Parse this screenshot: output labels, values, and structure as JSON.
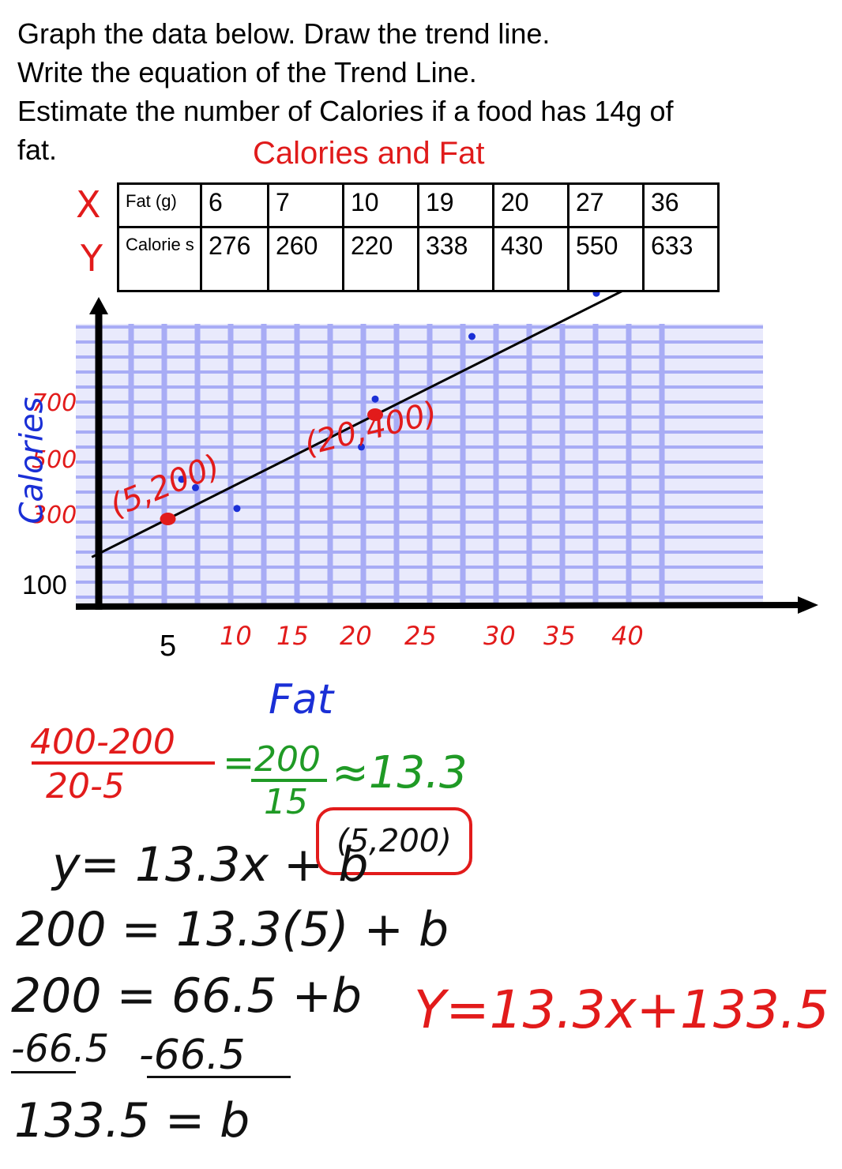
{
  "instructions": {
    "line1": "Graph the data below.  Draw the trend line.",
    "line2": "Write the equation of the Trend Line.",
    "line3": "Estimate the number of Calories if a food has 14g of",
    "line4": "fat."
  },
  "table": {
    "title": "Calories and Fat",
    "x_letter": "X",
    "y_letter": "Y",
    "row_x_label": "Fat (g)",
    "row_y_label": "Calorie s",
    "fat": [
      "6",
      "7",
      "10",
      "19",
      "20",
      "27",
      "36"
    ],
    "calories": [
      "276",
      "260",
      "220",
      "338",
      "430",
      "550",
      "633"
    ]
  },
  "graph": {
    "y_axis_title": "Calories",
    "x_axis_title": "Fat",
    "y_ticks": [
      "700",
      "500",
      "300",
      "100"
    ],
    "x_ticks": [
      "5",
      "10",
      "15",
      "20",
      "25",
      "30",
      "35",
      "40"
    ],
    "point_labels": [
      "(5,200)",
      "(20,400)"
    ],
    "colors": {
      "grid": "#a8acf5",
      "data_points": "#1a2fd6",
      "chosen_points": "#e21b1b",
      "trend_line": "#000000"
    }
  },
  "chart_data": {
    "type": "scatter",
    "title": "Calories and Fat",
    "xlabel": "Fat",
    "ylabel": "Calories",
    "x": [
      6,
      7,
      10,
      19,
      20,
      27,
      36
    ],
    "y": [
      276,
      260,
      220,
      338,
      430,
      550,
      633
    ],
    "highlighted_points": [
      [
        5,
        200
      ],
      [
        20,
        400
      ]
    ],
    "trend_line": {
      "slope": 13.3,
      "intercept": 133.5
    },
    "grid": true
  },
  "work": {
    "slope_num": "400-200",
    "slope_den": "20-5",
    "equals": "=",
    "simplified_num": "200",
    "simplified_den": "15",
    "approx": "≈13.3",
    "point_box": "(5,200)",
    "step1": "y= 13.3x + b",
    "step2": "200 = 13.3(5) + b",
    "step3": "200 =  66.5 +b",
    "step4_left": "-66.5",
    "step4_right": "-66.5",
    "step5": "133.5 = b",
    "final_equation": "Y=13.3x+133.5"
  }
}
